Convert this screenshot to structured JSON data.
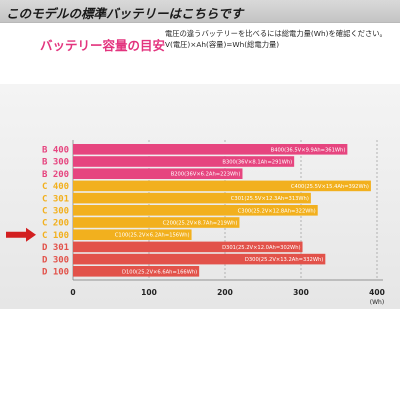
{
  "header": {
    "title": "このモデルの標準バッテリーはこちらです"
  },
  "subtitle": "バッテリー容量の目安",
  "note": {
    "line1": "電圧の違うバッテリーを比べるには総電力量(Wh)を確認ください。",
    "line2": "V(電圧)×Ah(容量)=Wh(総電力量)"
  },
  "colors": {
    "pink": "#e6457f",
    "orange": "#f2b01e",
    "red": "#e2524a",
    "arrow": "#d21f20"
  },
  "highlight_category": "C 100",
  "chart_data": {
    "type": "bar",
    "orientation": "horizontal",
    "categories": [
      "B 400",
      "B 300",
      "B 200",
      "C 400",
      "C 301",
      "C 300",
      "C 200",
      "C 100",
      "D 301",
      "D 300",
      "D 100"
    ],
    "values": [
      361,
      291,
      223,
      392,
      313,
      322,
      219,
      156,
      302,
      332,
      166
    ],
    "bar_labels": [
      "B400(36.5V×9.9Ah=361Wh)",
      "B300(36V×8.1Ah=291Wh)",
      "B200(36V×6.2Ah=223Wh)",
      "C400(25.5V×15.4Ah=392Wh)",
      "C301(25.5V×12.3Ah=313Wh)",
      "C300(25.2V×12.8Ah=322Wh)",
      "C200(25.2V×8.7Ah=219Wh)",
      "C100(25.2V×6.2Ah=156Wh)",
      "D301(25.2V×12.0Ah=302Wh)",
      "D300(25.2V×13.2Ah=332Wh)",
      "D100(25.2V×6.6Ah=166Wh)"
    ],
    "groups": [
      "pink",
      "pink",
      "pink",
      "orange",
      "orange",
      "orange",
      "orange",
      "orange",
      "red",
      "red",
      "red"
    ],
    "xlim": [
      0,
      400
    ],
    "xticks": [
      0,
      100,
      200,
      300,
      400
    ],
    "xunit": "(Wh)",
    "grid": true
  }
}
